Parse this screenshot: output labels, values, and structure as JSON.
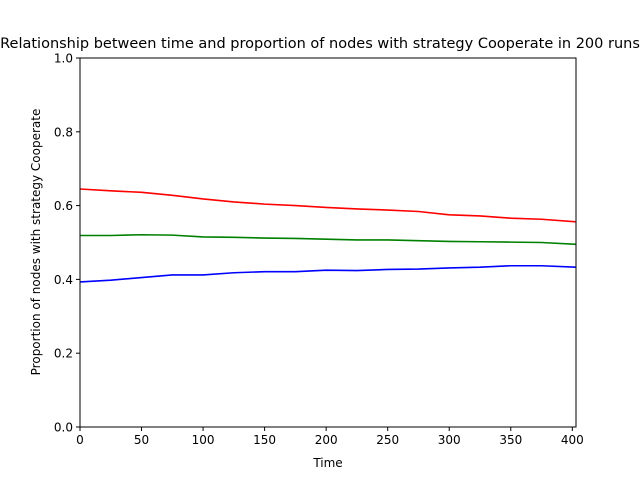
{
  "chart_data": {
    "type": "line",
    "title": "Relationship between time and proportion of nodes with strategy Cooperate in 200 runs",
    "xlabel": "Time",
    "ylabel": "Proportion of nodes with strategy Cooperate",
    "xlim": [
      0,
      403
    ],
    "ylim": [
      0,
      1.0
    ],
    "xticks": [
      0,
      50,
      100,
      150,
      200,
      250,
      300,
      350,
      400
    ],
    "xtick_labels": [
      "0",
      "50",
      "100",
      "150",
      "200",
      "250",
      "300",
      "350",
      "400"
    ],
    "yticks": [
      0.0,
      0.2,
      0.4,
      0.6,
      0.8,
      1.0
    ],
    "ytick_labels": [
      "0.0",
      "0.2",
      "0.4",
      "0.6",
      "0.8",
      "1.0"
    ],
    "grid": false,
    "series": [
      {
        "color": "#ff0000",
        "x": [
          0,
          25,
          50,
          75,
          100,
          125,
          150,
          175,
          200,
          225,
          250,
          275,
          300,
          325,
          350,
          375,
          403
        ],
        "values": [
          0.645,
          0.64,
          0.636,
          0.628,
          0.618,
          0.61,
          0.604,
          0.6,
          0.595,
          0.591,
          0.588,
          0.584,
          0.575,
          0.572,
          0.566,
          0.563,
          0.556
        ]
      },
      {
        "color": "#008000",
        "x": [
          0,
          25,
          50,
          75,
          100,
          125,
          150,
          175,
          200,
          225,
          250,
          275,
          300,
          325,
          350,
          375,
          403
        ],
        "values": [
          0.519,
          0.519,
          0.521,
          0.52,
          0.515,
          0.514,
          0.512,
          0.511,
          0.509,
          0.507,
          0.507,
          0.505,
          0.503,
          0.502,
          0.501,
          0.5,
          0.495
        ]
      },
      {
        "color": "#0000ff",
        "x": [
          0,
          25,
          50,
          75,
          100,
          125,
          150,
          175,
          200,
          225,
          250,
          275,
          300,
          325,
          350,
          375,
          403
        ],
        "values": [
          0.393,
          0.398,
          0.405,
          0.412,
          0.412,
          0.418,
          0.421,
          0.421,
          0.425,
          0.424,
          0.427,
          0.428,
          0.431,
          0.433,
          0.437,
          0.437,
          0.433
        ]
      }
    ]
  }
}
